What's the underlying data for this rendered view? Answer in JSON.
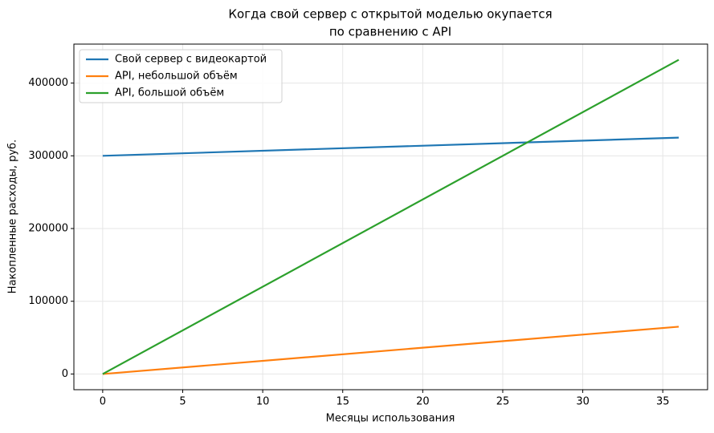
{
  "chart_data": {
    "type": "line",
    "title": [
      "Когда свой сервер с открытой моделью окупается",
      "по сравнению с API"
    ],
    "xlabel": "Месяцы использования",
    "ylabel": "Накопленные расходы, руб.",
    "x": [
      0,
      36
    ],
    "series": [
      {
        "name": "Свой сервер с видеокартой",
        "color": "#1f77b4",
        "values": [
          300000,
          325000
        ]
      },
      {
        "name": "API, небольшой объём",
        "color": "#ff7f0e",
        "values": [
          0,
          65000
        ]
      },
      {
        "name": "API, большой объём",
        "color": "#2ca02c",
        "values": [
          0,
          432000
        ]
      }
    ],
    "xlim": [
      -1.8,
      37.8
    ],
    "xticks": [
      0,
      5,
      10,
      15,
      20,
      25,
      30,
      35
    ],
    "ylim": [
      -21600,
      453600
    ],
    "yticks": [
      0,
      100000,
      200000,
      300000,
      400000
    ],
    "grid": true,
    "legend": "upper-left"
  }
}
